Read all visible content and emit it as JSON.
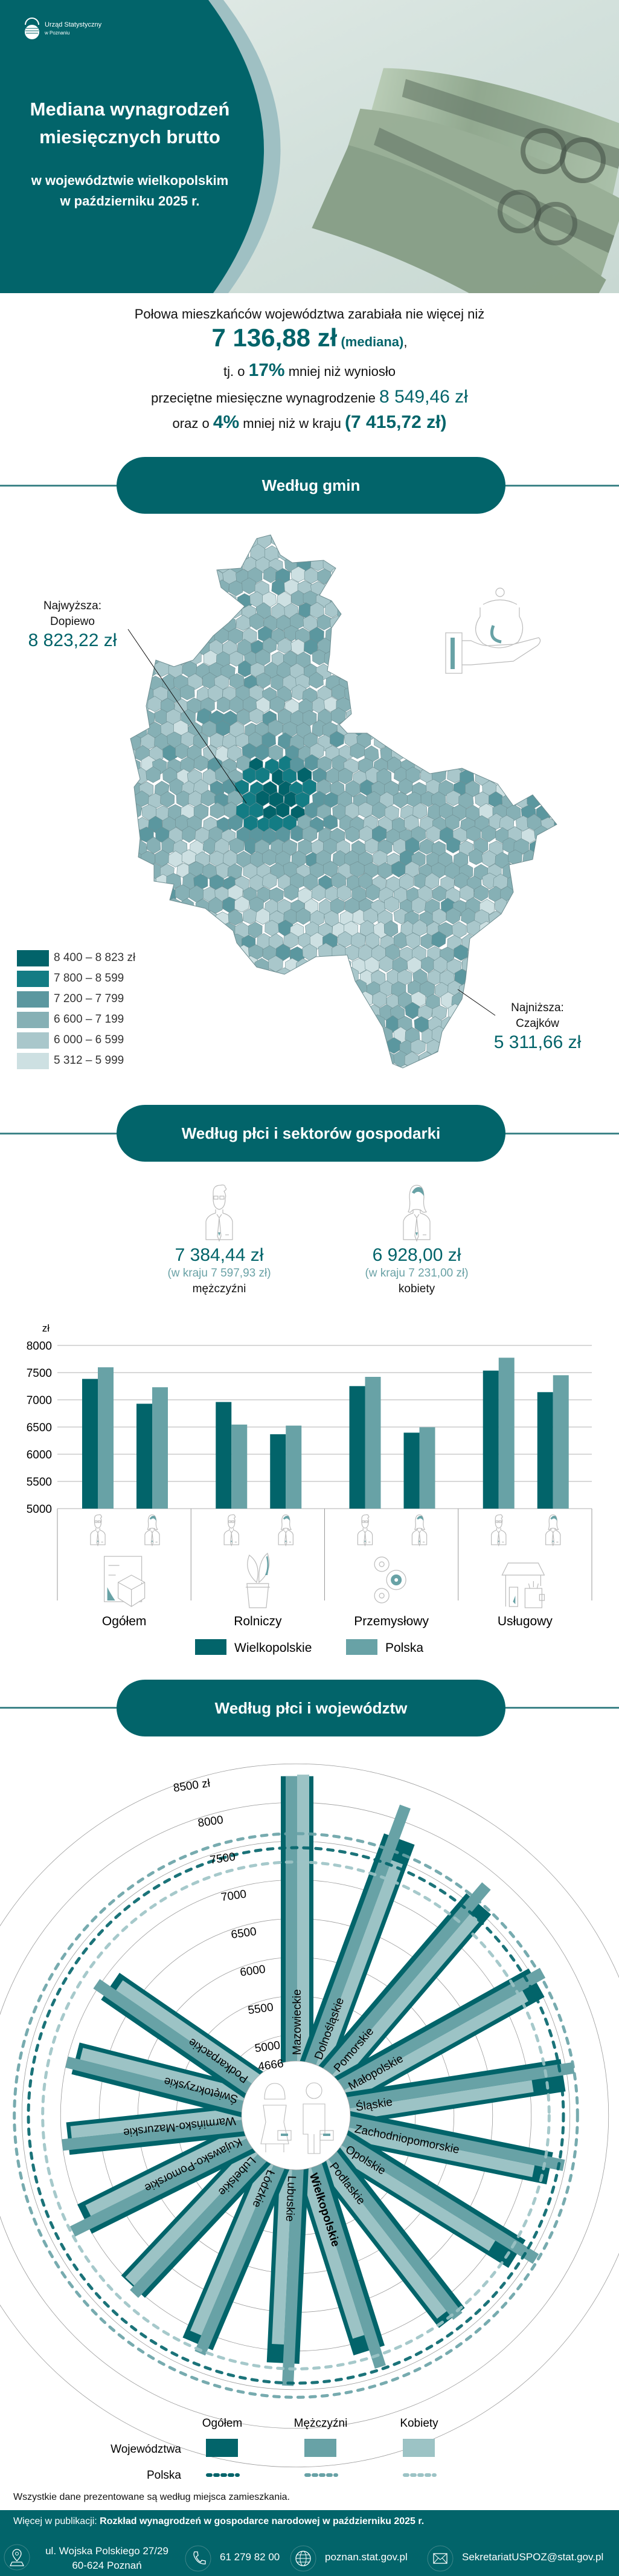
{
  "header": {
    "logo_line1": "Urząd Statystyczny",
    "logo_line2": "w Poznaniu",
    "title_line1": "Mediana wynagrodzeń",
    "title_line2": "miesięcznych brutto",
    "subtitle_line1": "w województwie wielkopolskim",
    "subtitle_line2": "w październiku 2025 r."
  },
  "intro": {
    "line1": "Połowa mieszkańców województwa zarabiała nie więcej niż",
    "median": "7 136,88 zł",
    "median_note": "(mediana)",
    "median_comma": ",",
    "l3_pre": "tj. o",
    "pct1": "17%",
    "l3_post": "mniej niż wyniosło",
    "l4_pre": "przeciętne miesięczne wynagrodzenie",
    "average": "8 549,46 zł",
    "l5_pre": "oraz o",
    "pct2": "4%",
    "l5_mid": "mniej niż w kraju",
    "national": "(7 415,72 zł)"
  },
  "sections": [
    "Według gmin",
    "Według płci i sektorów gospodarki",
    "Według płci i województw"
  ],
  "map": {
    "highest_label": "Najwyższa:",
    "highest_name": "Dopiewo",
    "highest_value": "8 823,22 zł",
    "lowest_label": "Najniższa:",
    "lowest_name": "Czajków",
    "lowest_value": "5 311,66 zł",
    "legend": [
      {
        "label": "8 400 – 8 823 zł",
        "color": "#02636a"
      },
      {
        "label": "7 800 – 8 599",
        "color": "#137c84"
      },
      {
        "label": "7 200 – 7 799",
        "color": "#5b979f"
      },
      {
        "label": "6 600 – 7 199",
        "color": "#86b0b5"
      },
      {
        "label": "6 000 – 6 599",
        "color": "#a9c7cb"
      },
      {
        "label": "5 312 – 5 999",
        "color": "#cde0e2"
      }
    ],
    "icon": "hand-coin-jar-icon"
  },
  "gender": {
    "men": {
      "value": "7 384,44 zł",
      "national": "(w kraju 7 597,93 zł)",
      "label": "mężczyźni",
      "icon": "man-icon"
    },
    "women": {
      "value": "6 928,00 zł",
      "national": "(w kraju 7 231,00 zł)",
      "label": "kobiety",
      "icon": "woman-icon"
    }
  },
  "chart_data": [
    {
      "type": "bar",
      "ylabel": "zł",
      "ylim": [
        5000,
        8000
      ],
      "yticks": [
        5000,
        5500,
        6000,
        6500,
        7000,
        7500,
        8000
      ],
      "grid": true,
      "categories": [
        "Ogółem",
        "Rolniczy",
        "Przemysłowy",
        "Usługowy"
      ],
      "category_icons": [
        "documents-box-icon",
        "plant-pot-icon",
        "gears-icon",
        "shop-wallet-icon"
      ],
      "subgroups": [
        {
          "key": "men",
          "icon": "man-icon"
        },
        {
          "key": "women",
          "icon": "woman-icon"
        }
      ],
      "series": [
        {
          "name": "Wielkopolskie",
          "color": "#02646a",
          "men": [
            7384.44,
            6960,
            7252,
            7537
          ],
          "women": [
            6928.0,
            6367,
            6396,
            7141
          ]
        },
        {
          "name": "Polska",
          "color": "#68a2a6",
          "men": [
            7597.93,
            6545,
            7422,
            7774
          ],
          "women": [
            7231.0,
            6526,
            6496,
            7452
          ]
        }
      ],
      "legend_position": "bottom"
    },
    {
      "type": "radial-bar",
      "rticks": [
        4666,
        5000,
        5500,
        6000,
        6500,
        7000,
        7500,
        8000,
        8500
      ],
      "rtick_labels": [
        "4666",
        "5000",
        "5500",
        "6000",
        "6500",
        "7000",
        "7500",
        "8000",
        "8500 zł"
      ],
      "grid": true,
      "highlight": "Wielkopolskie",
      "categories": [
        "Mazowieckie",
        "Dolnośląskie",
        "Pomorskie",
        "Małopolskie",
        "Śląskie",
        "Zachodniopomorskie",
        "Opolskie",
        "Podlaskie",
        "Wielkopolskie",
        "Lubuskie",
        "Łódzkie",
        "Lubelskie",
        "Kujawsko-Pomorskie",
        "Warmińsko-Mazurskie",
        "Świętokrzyskie",
        "Podkarpackie"
      ],
      "series": [
        {
          "name": "Ogółem",
          "color": "#02646a",
          "values": [
            8340,
            7770,
            7570,
            7510,
            7450,
            7310,
            7330,
            7260,
            7136.88,
            7160,
            7170,
            7010,
            7000,
            6920,
            6900,
            6880
          ]
        },
        {
          "name": "Mężczyźni",
          "color": "#68a2a6",
          "values": [
            8340,
            8190,
            7810,
            7640,
            7600,
            7480,
            7570,
            7290,
            7384.44,
            7450,
            7270,
            7070,
            7210,
            7000,
            7000,
            7045
          ]
        },
        {
          "name": "Kobiety",
          "color": "#9cc3c5",
          "values": [
            8360,
            7480,
            7410,
            7300,
            7040,
            7110,
            7000,
            7150,
            6928.0,
            6920,
            7050,
            6990,
            6910,
            6870,
            6840,
            6790
          ]
        }
      ],
      "reference": {
        "name": "Polska",
        "values": {
          "Ogółem": 7415.72,
          "Mężczyźni": 7597.93,
          "Kobiety": 7231.0
        }
      },
      "legend": {
        "columns": [
          "Ogółem",
          "Mężczyźni",
          "Kobiety"
        ],
        "rows": [
          "Województwa",
          "Polska"
        ]
      },
      "center_icon": "woman-man-briefcase-icon"
    }
  ],
  "footnote": "Wszystkie dane prezentowane są według miejsca zamieszkania.",
  "footer": {
    "more_label": "Więcej w publikacji: ",
    "publication": "Rozkład wynagrodzeń w gospodarce narodowej w październiku 2025 r.",
    "address_line1": "ul. Wojska Polskiego 27/29",
    "address_line2": "60-624 Poznań",
    "phone": "61 279 82 00",
    "website": "poznan.stat.gov.pl",
    "email": "SekretariatUSPOZ@stat.gov.pl"
  }
}
